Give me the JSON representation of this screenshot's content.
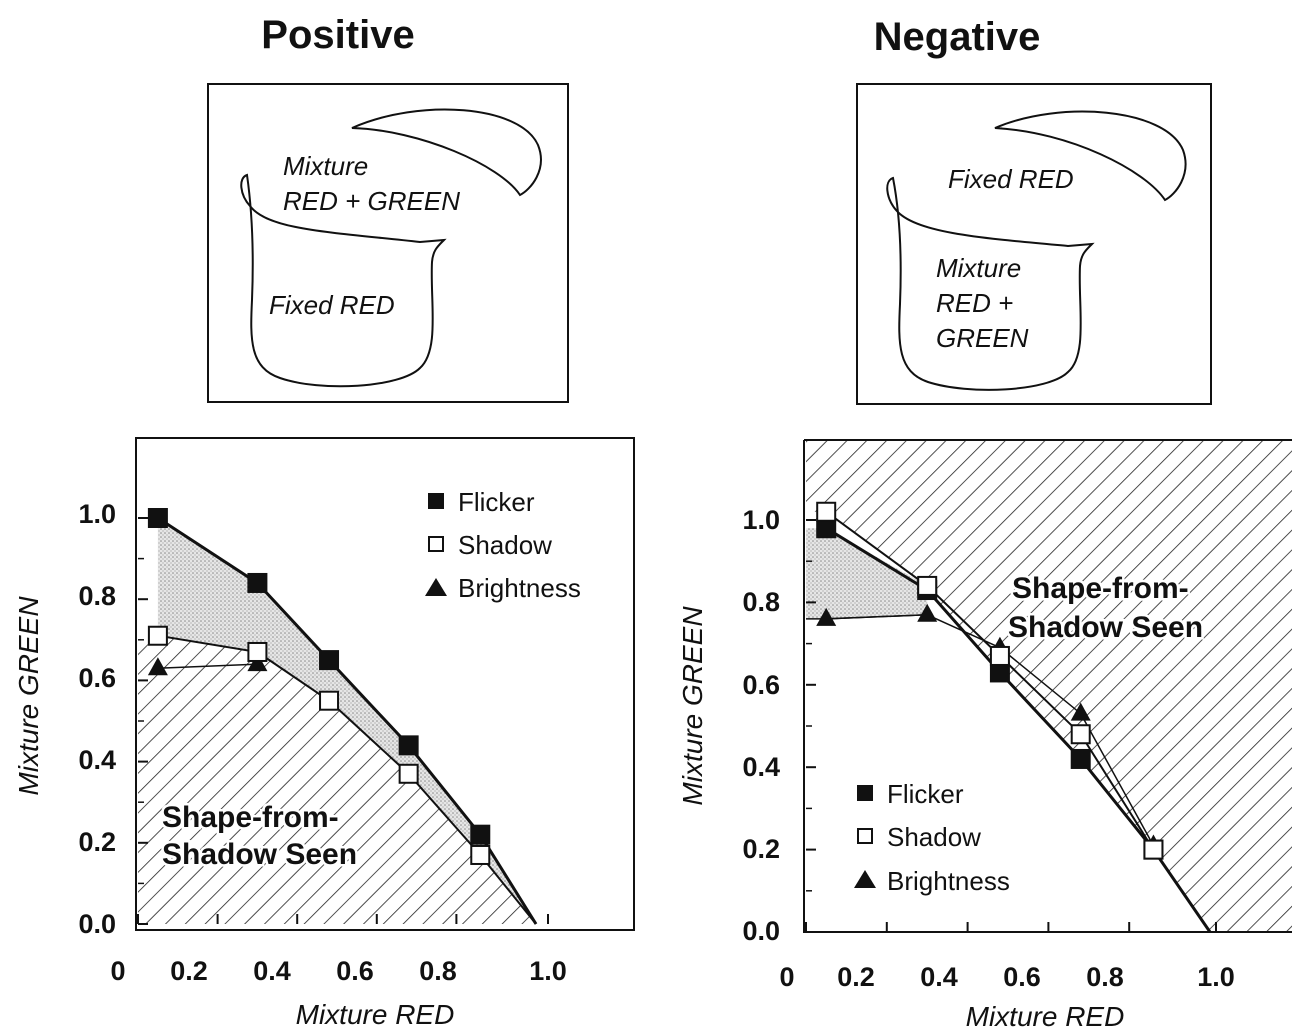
{
  "panels": [
    {
      "id": "positive",
      "title": "Positive",
      "diagram": {
        "upper_label_lines": [
          "Mixture",
          "RED + GREEN"
        ],
        "lower_label_lines": [
          "Fixed RED"
        ]
      }
    },
    {
      "id": "negative",
      "title": "Negative",
      "diagram": {
        "upper_label_lines": [
          "Fixed RED"
        ],
        "lower_label_lines": [
          "Mixture",
          "RED +",
          "GREEN"
        ]
      }
    }
  ],
  "chart_data": [
    {
      "type": "line",
      "title": "Positive",
      "xlabel": "Mixture RED",
      "ylabel": "Mixture GREEN",
      "x_tick_labels": [
        "0",
        "0.2",
        "0.4",
        "0.6",
        "0.8",
        "1.0"
      ],
      "y_tick_labels": [
        "0.0",
        "0.2",
        "0.4",
        "0.6",
        "0.8",
        "1.0"
      ],
      "xlim": [
        0,
        1.2
      ],
      "ylim": [
        0,
        1.2
      ],
      "legend_position": "top-right",
      "region_label": [
        "Shape-from-",
        "Shadow Seen"
      ],
      "series": [
        {
          "name": "Flicker",
          "marker": "filled-square",
          "x": [
            0.05,
            0.3,
            0.48,
            0.68,
            0.86,
            1.0
          ],
          "y": [
            1.0,
            0.84,
            0.65,
            0.44,
            0.22,
            0.0
          ]
        },
        {
          "name": "Shadow",
          "marker": "open-square",
          "x": [
            0.05,
            0.3,
            0.48,
            0.68,
            0.86,
            1.0
          ],
          "y": [
            0.71,
            0.67,
            0.55,
            0.37,
            0.17,
            0.0
          ]
        },
        {
          "name": "Brightness",
          "marker": "filled-triangle",
          "x": [
            0.05,
            0.3
          ],
          "y": [
            0.63,
            0.64
          ]
        }
      ]
    },
    {
      "type": "line",
      "title": "Negative",
      "xlabel": "Mixture RED",
      "ylabel": "Mixture GREEN",
      "x_tick_labels": [
        "0",
        "0.2",
        "0.4",
        "0.6",
        "0.8",
        "1.0"
      ],
      "y_tick_labels": [
        "0.0",
        "0.2",
        "0.4",
        "0.6",
        "0.8",
        "1.0"
      ],
      "xlim": [
        0,
        1.2
      ],
      "ylim": [
        0,
        1.2
      ],
      "legend_position": "bottom-left",
      "region_label": [
        "Shape-from-",
        "Shadow Seen"
      ],
      "series": [
        {
          "name": "Flicker",
          "marker": "filled-square",
          "x": [
            0.05,
            0.3,
            0.48,
            0.68,
            0.86,
            1.0
          ],
          "y": [
            0.98,
            0.83,
            0.63,
            0.42,
            0.2,
            0.0
          ]
        },
        {
          "name": "Shadow",
          "marker": "open-square",
          "x": [
            0.05,
            0.3,
            0.48,
            0.68,
            0.86
          ],
          "y": [
            1.02,
            0.84,
            0.67,
            0.48,
            0.2
          ]
        },
        {
          "name": "Brightness",
          "marker": "filled-triangle",
          "x": [
            0.05,
            0.3,
            0.48,
            0.68,
            0.86
          ],
          "y": [
            0.76,
            0.77,
            0.69,
            0.53,
            0.21
          ]
        }
      ]
    }
  ]
}
